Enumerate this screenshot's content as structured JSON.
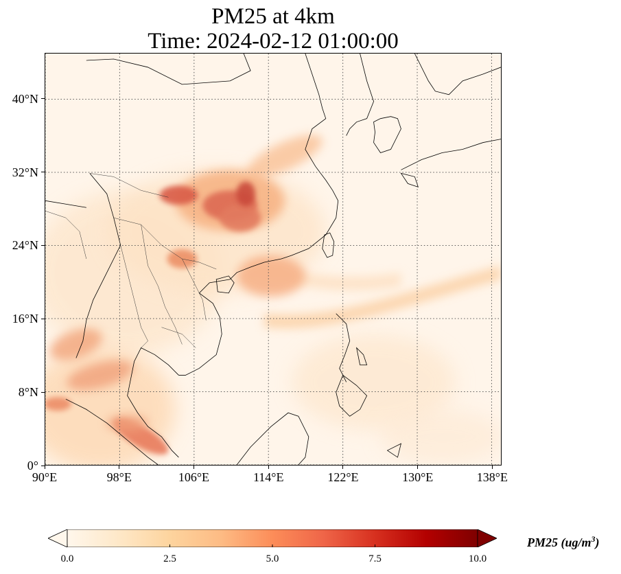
{
  "title": {
    "line1": "PM25 at 4km",
    "line2": "Time: 2024-02-12 01:00:00"
  },
  "map": {
    "extent": {
      "lon_min": 90,
      "lon_max": 139,
      "lat_min": 0,
      "lat_max": 45
    },
    "projection": "PlateCarree",
    "gridlines": "dotted",
    "xticks": [
      {
        "value": 90,
        "label": "90°E"
      },
      {
        "value": 98,
        "label": "98°E"
      },
      {
        "value": 106,
        "label": "106°E"
      },
      {
        "value": 114,
        "label": "114°E"
      },
      {
        "value": 122,
        "label": "122°E"
      },
      {
        "value": 130,
        "label": "130°E"
      },
      {
        "value": 138,
        "label": "138°E"
      }
    ],
    "yticks": [
      {
        "value": 0,
        "label": "0°"
      },
      {
        "value": 8,
        "label": "8°N"
      },
      {
        "value": 16,
        "label": "16°N"
      },
      {
        "value": 24,
        "label": "24°N"
      },
      {
        "value": 32,
        "label": "32°N"
      },
      {
        "value": 40,
        "label": "40°N"
      }
    ],
    "hotspots": [
      {
        "region": "Sichuan/Chongqing",
        "lon": 105.8,
        "lat": 29.2,
        "value": 7.5
      },
      {
        "region": "Hubei/Hunan",
        "lon": 112.5,
        "lat": 28.6,
        "value": 8.5
      },
      {
        "region": "Hubei north",
        "lon": 112.2,
        "lat": 30.5,
        "value": 7.5
      },
      {
        "region": "Guangxi/N Vietnam",
        "lon": 105.5,
        "lat": 22.5,
        "value": 6.5
      },
      {
        "region": "Guangdong coast",
        "lon": 113.5,
        "lat": 23.0,
        "value": 5.0
      },
      {
        "region": "Sumatra/Malacca",
        "lon": 99.5,
        "lat": 3.5,
        "value": 6.0
      },
      {
        "region": "Andaman Sea",
        "lon": 93.5,
        "lat": 12.0,
        "value": 5.0
      }
    ],
    "plumes": [
      {
        "description": "band across South China Sea to Pacific",
        "from_lon": 116,
        "from_lat": 17,
        "to_lon": 139,
        "to_lat": 21,
        "value": 3.0
      }
    ]
  },
  "colorbar": {
    "label": "PM25 (ug/m",
    "label_superscript": "3",
    "label_close": ")",
    "vmin": 0.0,
    "vmax": 10.0,
    "extend": "both",
    "colormap": "OrRd",
    "colors": [
      "#fff7ec",
      "#fee8c8",
      "#fdd49e",
      "#fdbb84",
      "#fc8d59",
      "#ef6548",
      "#d7301f",
      "#b30000",
      "#7f0000"
    ],
    "ticks": [
      {
        "value": 0.0,
        "label": "0.0"
      },
      {
        "value": 2.5,
        "label": "2.5"
      },
      {
        "value": 5.0,
        "label": "5.0"
      },
      {
        "value": 7.5,
        "label": "7.5"
      },
      {
        "value": 10.0,
        "label": "10.0"
      }
    ]
  }
}
